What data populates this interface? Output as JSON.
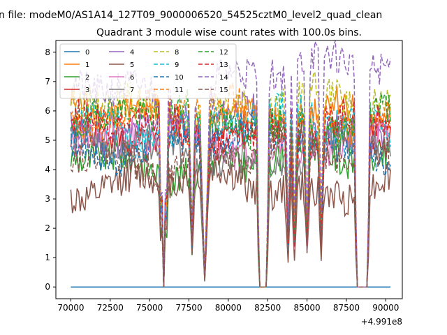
{
  "figure": {
    "suptitle": "...n file: modeM0/AS1A14_127T09_9000006520_54525cztM0_level2_quad_clean...",
    "suptitle_visible": "n file: modeM0/AS1A14_127T09_9000006520_54525cztM0_level2_quad_clean"
  },
  "chart_data": {
    "type": "line",
    "title": "Quadrant 3 module wise count rates with 100.0s bins.",
    "xlabel": "",
    "ylabel": "",
    "x_offset_label": "+4.991e8",
    "xlim": [
      69050,
      91050
    ],
    "ylim": [
      -0.4,
      8.4
    ],
    "x_ticks": [
      70000,
      72500,
      75000,
      77500,
      80000,
      82500,
      85000,
      87500,
      90000
    ],
    "x_tick_labels": [
      "70000",
      "72500",
      "75000",
      "77500",
      "80000",
      "82500",
      "85000",
      "87500",
      "90000"
    ],
    "y_ticks": [
      0,
      1,
      2,
      3,
      4,
      5,
      6,
      7,
      8
    ],
    "y_tick_labels": [
      "0",
      "1",
      "2",
      "3",
      "4",
      "5",
      "6",
      "7",
      "8"
    ],
    "x_start": 70000,
    "x_step": 100,
    "n_points": 204,
    "dips": [
      {
        "x": 75900,
        "depth": "zero"
      },
      {
        "x": 77700,
        "depth": "partial"
      },
      {
        "x": 78500,
        "depth": "near-zero"
      },
      {
        "x": 82000,
        "depth": "zero-flat",
        "to": 82400
      },
      {
        "x": 83800,
        "depth": "partial"
      },
      {
        "x": 84200,
        "depth": "partial"
      },
      {
        "x": 85000,
        "depth": "partial"
      },
      {
        "x": 85900,
        "depth": "partial"
      },
      {
        "x": 88200,
        "depth": "zero-flat",
        "to": 88800
      }
    ],
    "series": [
      {
        "name": "0",
        "color": "#1f77b4",
        "style": "solid",
        "base": 0.0
      },
      {
        "name": "1",
        "color": "#ff7f0e",
        "style": "solid",
        "base": 5.8
      },
      {
        "name": "2",
        "color": "#2ca02c",
        "style": "solid",
        "base": 4.3
      },
      {
        "name": "3",
        "color": "#d62728",
        "style": "solid",
        "base": 5.3
      },
      {
        "name": "4",
        "color": "#9467bd",
        "style": "solid",
        "base": 5.5
      },
      {
        "name": "5",
        "color": "#8c564b",
        "style": "solid",
        "base": 3.5
      },
      {
        "name": "6",
        "color": "#e377c2",
        "style": "solid",
        "base": 5.0
      },
      {
        "name": "7",
        "color": "#7f7f7f",
        "style": "solid",
        "base": 4.6
      },
      {
        "name": "8",
        "color": "#bcbd22",
        "style": "dashed",
        "base": 6.2
      },
      {
        "name": "9",
        "color": "#17becf",
        "style": "dashed",
        "base": 5.6
      },
      {
        "name": "10",
        "color": "#1f77b4",
        "style": "dashed",
        "base": 4.9
      },
      {
        "name": "11",
        "color": "#ff7f0e",
        "style": "dashed",
        "base": 5.9
      },
      {
        "name": "12",
        "color": "#2ca02c",
        "style": "dashed",
        "base": 5.7
      },
      {
        "name": "13",
        "color": "#d62728",
        "style": "dashed",
        "base": 5.4
      },
      {
        "name": "14",
        "color": "#9467bd",
        "style": "dashed",
        "base": 6.6
      },
      {
        "name": "15",
        "color": "#8c564b",
        "style": "dashed",
        "base": 4.5
      }
    ],
    "legend": {
      "placement": "top-left",
      "columns": 4
    }
  }
}
